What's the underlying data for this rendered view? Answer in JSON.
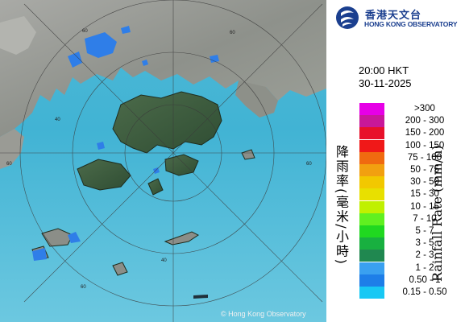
{
  "map": {
    "copyright": "© Hong Kong Observatory",
    "range_labels": [
      "60",
      "60",
      "60",
      "60",
      "60",
      "40",
      "40"
    ]
  },
  "header": {
    "logo_cn": "香港天文台",
    "logo_en": "HONG KONG OBSERVATORY",
    "time": "20:00 HKT",
    "date": "30-11-2025"
  },
  "legend": {
    "title_cn": "降雨率(毫米/小時)",
    "title_en": "Rainfall Rate (mm/h)",
    "items": [
      {
        "label": ">300",
        "color": "#e600e6"
      },
      {
        "label": "200 - 300",
        "color": "#c8189a"
      },
      {
        "label": "150 - 200",
        "color": "#e8102a"
      },
      {
        "label": "100 - 150",
        "color": "#f01818"
      },
      {
        "label": "75 - 100",
        "color": "#f06a10"
      },
      {
        "label": "50 - 75",
        "color": "#f2a010"
      },
      {
        "label": "30 - 50",
        "color": "#f2c800"
      },
      {
        "label": "15 - 30",
        "color": "#e8e000"
      },
      {
        "label": "10 - 15",
        "color": "#c0f000"
      },
      {
        "label": "7 - 10",
        "color": "#60f020"
      },
      {
        "label": "5 - 7",
        "color": "#20d820"
      },
      {
        "label": "3 - 5",
        "color": "#18b040"
      },
      {
        "label": "2 - 3",
        "color": "#208850"
      },
      {
        "label": "1 - 2",
        "color": "#3aa0f0"
      },
      {
        "label": "0.50 - 1",
        "color": "#1e7ee8"
      },
      {
        "label": "0.15 - 0.50",
        "color": "#18c8f4"
      }
    ]
  }
}
